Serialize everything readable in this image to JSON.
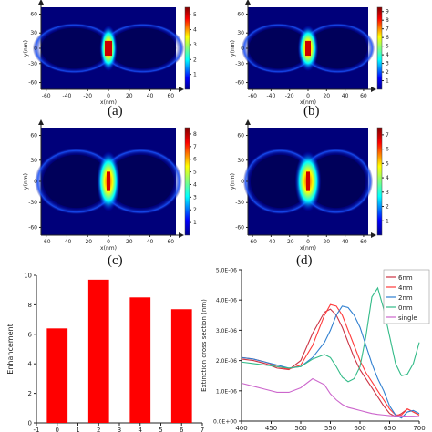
{
  "captions": [
    "(a)",
    "(b)",
    "(c)",
    "(d)"
  ],
  "heatmaps": [
    {
      "panel": "(a)",
      "x_label": "x(nm)",
      "y_label": "y(nm)",
      "x_ticks": [
        "-60",
        "-40",
        "-20",
        "0",
        "20",
        "40",
        "60"
      ],
      "y_ticks": [
        "60",
        "30",
        "0",
        "-30",
        "-60"
      ],
      "colorbar_ticks": [
        "5",
        "4",
        "3",
        "2",
        "1"
      ],
      "colorbar_max": 5.5,
      "gap_nm": 6
    },
    {
      "panel": "(b)",
      "x_label": "x(nm)",
      "y_label": "y(nm)",
      "x_ticks": [
        "-60",
        "-40",
        "-20",
        "0",
        "20",
        "40",
        "60"
      ],
      "y_ticks": [
        "60",
        "30",
        "0",
        "-30",
        "-60"
      ],
      "colorbar_ticks": [
        "9",
        "8",
        "7",
        "6",
        "5",
        "4",
        "3",
        "2",
        "1"
      ],
      "colorbar_max": 9.5,
      "gap_nm": 4
    },
    {
      "panel": "(c)",
      "x_label": "x(nm)",
      "y_label": "y(nm)",
      "x_ticks": [
        "-60",
        "-40",
        "-20",
        "0",
        "20",
        "40",
        "60"
      ],
      "y_ticks": [
        "60",
        "30",
        "0",
        "-30",
        "-60"
      ],
      "colorbar_ticks": [
        "8",
        "7",
        "6",
        "5",
        "4",
        "3",
        "2",
        "1"
      ],
      "colorbar_max": 8.5,
      "gap_nm": 2
    },
    {
      "panel": "(d)",
      "x_label": "x(nm)",
      "y_label": "y(nm)",
      "x_ticks": [
        "-60",
        "-40",
        "-20",
        "0",
        "20",
        "40",
        "60"
      ],
      "y_ticks": [
        "60",
        "30",
        "0",
        "-30",
        "-60"
      ],
      "colorbar_ticks": [
        "7",
        "6",
        "5",
        "4",
        "3",
        "2",
        "1"
      ],
      "colorbar_max": 7.5,
      "gap_nm": 0
    }
  ],
  "colors": {
    "bar": "#ff0000",
    "6nm": "#cc3344",
    "4nm": "#ff3b3b",
    "2nm": "#2f7fd0",
    "0nm": "#33bb88",
    "single": "#cc66cc"
  },
  "chart_data": [
    {
      "type": "bar",
      "title": "",
      "xlabel": "",
      "ylabel": "Enhancement",
      "xlim": [
        -1,
        7
      ],
      "ylim": [
        0,
        10
      ],
      "x_ticks": [
        "-1",
        "0",
        "1",
        "2",
        "3",
        "4",
        "5",
        "6",
        "7"
      ],
      "y_ticks": [
        "0",
        "2",
        "4",
        "6",
        "8",
        "10"
      ],
      "x": [
        0,
        2,
        4,
        6
      ],
      "values": [
        6.4,
        9.7,
        8.5,
        7.7
      ]
    },
    {
      "type": "line",
      "title": "",
      "xlabel": "",
      "ylabel": "Extinction cross section (nm)",
      "xlim": [
        400,
        700
      ],
      "ylim": [
        0,
        5e-06
      ],
      "x_ticks": [
        "400",
        "450",
        "500",
        "550",
        "600",
        "650",
        "700"
      ],
      "y_ticks": [
        "0.0E+00",
        "1.0E-06",
        "2.0E-06",
        "3.0E-06",
        "4.0E-06",
        "5.0E-06"
      ],
      "legend_position": "top-right",
      "x": [
        400,
        420,
        440,
        460,
        480,
        500,
        520,
        540,
        550,
        560,
        570,
        580,
        590,
        600,
        610,
        620,
        630,
        640,
        650,
        660,
        670,
        680,
        690,
        700
      ],
      "series": [
        {
          "name": "6nm",
          "key": "6nm",
          "values": [
            2.05e-06,
            2e-06,
            1.9e-06,
            1.75e-06,
            1.7e-06,
            2e-06,
            2.9e-06,
            3.6e-06,
            3.7e-06,
            3.5e-06,
            3.1e-06,
            2.6e-06,
            2.1e-06,
            1.7e-06,
            1.4e-06,
            1.1e-06,
            8e-07,
            5e-07,
            2.5e-07,
            1.5e-07,
            2.5e-07,
            4e-07,
            3e-07,
            2e-07
          ]
        },
        {
          "name": "4nm",
          "key": "4nm",
          "values": [
            2.1e-06,
            2.05e-06,
            1.95e-06,
            1.8e-06,
            1.72e-06,
            1.85e-06,
            2.5e-06,
            3.5e-06,
            3.85e-06,
            3.8e-06,
            3.5e-06,
            3e-06,
            2.5e-06,
            2e-06,
            1.6e-06,
            1.3e-06,
            1e-06,
            7e-07,
            4e-07,
            2e-07,
            2e-07,
            4e-07,
            3e-07,
            2e-07
          ]
        },
        {
          "name": "2nm",
          "key": "2nm",
          "values": [
            2.1e-06,
            2.05e-06,
            1.95e-06,
            1.85e-06,
            1.75e-06,
            1.8e-06,
            2.1e-06,
            2.6e-06,
            3e-06,
            3.5e-06,
            3.8e-06,
            3.75e-06,
            3.5e-06,
            3.1e-06,
            2.5e-06,
            1.9e-06,
            1.4e-06,
            1e-06,
            5e-07,
            2e-07,
            1e-07,
            3e-07,
            3.5e-07,
            2.5e-07
          ]
        },
        {
          "name": "0nm",
          "key": "0nm",
          "values": [
            1.95e-06,
            1.9e-06,
            1.85e-06,
            1.8e-06,
            1.75e-06,
            1.8e-06,
            2.05e-06,
            2.2e-06,
            2.1e-06,
            1.8e-06,
            1.45e-06,
            1.3e-06,
            1.4e-06,
            1.8e-06,
            2.8e-06,
            4.1e-06,
            4.4e-06,
            3.7e-06,
            2.8e-06,
            1.9e-06,
            1.5e-06,
            1.55e-06,
            1.9e-06,
            2.6e-06
          ]
        },
        {
          "name": "single",
          "key": "single",
          "values": [
            1.25e-06,
            1.15e-06,
            1.05e-06,
            9.5e-07,
            9.5e-07,
            1.1e-06,
            1.4e-06,
            1.2e-06,
            9e-07,
            7e-07,
            5.5e-07,
            4.5e-07,
            4e-07,
            3.5e-07,
            3e-07,
            2.5e-07,
            2.2e-07,
            2e-07,
            1.8e-07,
            1.7e-07,
            1.7e-07,
            1.6e-07,
            1.6e-07,
            1.5e-07
          ]
        }
      ]
    }
  ]
}
